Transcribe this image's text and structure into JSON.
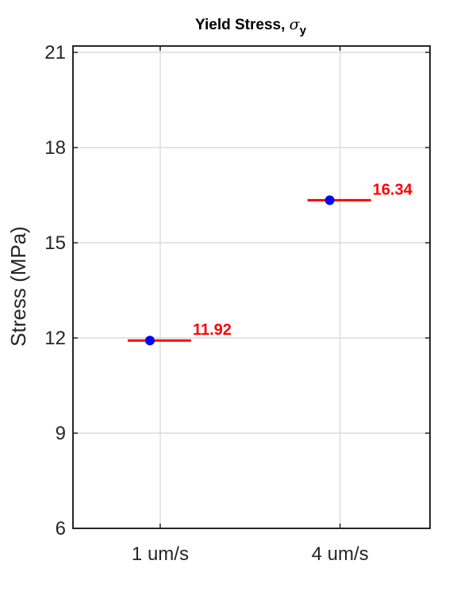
{
  "chart_data": {
    "type": "scatter",
    "title": "Yield Stress, ",
    "title_symbol": "σ",
    "title_subscript": "y",
    "xlabel": "",
    "ylabel": "Stress (MPa)",
    "categories": [
      "1 um/s",
      "4 um/s"
    ],
    "yticks": [
      "6",
      "9",
      "12",
      "15",
      "18",
      "21"
    ],
    "ylim": [
      6,
      21.2
    ],
    "grid": true,
    "legend": "none",
    "marker_color": "#0000ff",
    "line_color": "#ff0000",
    "label_color": "#ff0000",
    "points": [
      {
        "category": "1 um/s",
        "value": 11.92,
        "label": "11.92"
      },
      {
        "category": "4 um/s",
        "value": 16.34,
        "label": "16.34"
      }
    ]
  }
}
